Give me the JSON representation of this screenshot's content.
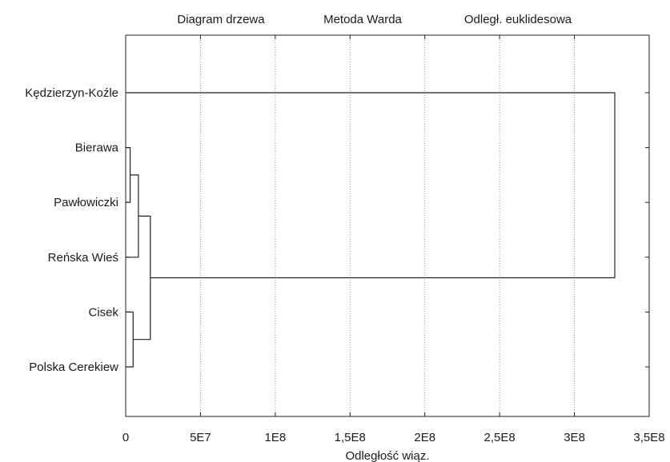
{
  "chart_data": {
    "type": "dendrogram",
    "title_parts": [
      "Diagram drzewa",
      "Metoda Warda",
      "Odległ. euklidesowa"
    ],
    "xlabel": "Odległość wiąz.",
    "xlim": [
      0,
      350000000
    ],
    "x_ticks": [
      {
        "value": 0,
        "label": "0"
      },
      {
        "value": 50000000,
        "label": "5E7"
      },
      {
        "value": 100000000,
        "label": "1E8"
      },
      {
        "value": 150000000,
        "label": "1,5E8"
      },
      {
        "value": 200000000,
        "label": "2E8"
      },
      {
        "value": 250000000,
        "label": "2,5E8"
      },
      {
        "value": 300000000,
        "label": "3E8"
      },
      {
        "value": 350000000,
        "label": "3,5E8"
      }
    ],
    "grid": "vertical-dotted",
    "leaves": [
      "Kędzierzyn-Koźle",
      "Bierawa",
      "Pawłowiczki",
      "Reńska Wieś",
      "Cisek",
      "Polska Cerekiew"
    ],
    "merges": [
      {
        "children": [
          "Bierawa",
          "Pawłowiczki"
        ],
        "distance": 3000000
      },
      {
        "children": [
          "Cisek",
          "Polska Cerekiew"
        ],
        "distance": 5000000
      },
      {
        "children": [
          "Bierawa+Pawłowiczki",
          "Reńska Wieś"
        ],
        "distance": 8500000
      },
      {
        "children": [
          "Bierawa+Pawłowiczki+Reńska Wieś",
          "Cisek+Polska Cerekiew"
        ],
        "distance": 16500000
      },
      {
        "children": [
          "Kędzierzyn-Koźle",
          "Bierawa+Pawłowiczki+Reńska Wieś+Cisek+Polska Cerekiew"
        ],
        "distance": 327000000
      }
    ]
  }
}
